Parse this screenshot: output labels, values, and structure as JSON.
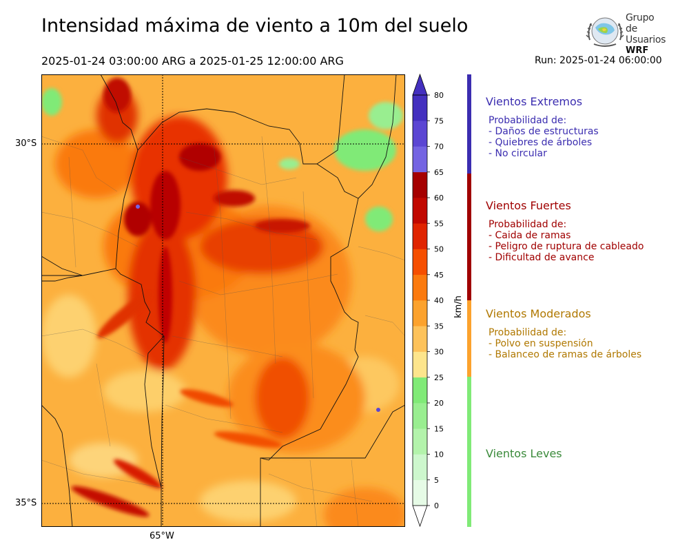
{
  "header": {
    "title": "Intensidad máxima de viento a 10m del suelo",
    "period": "2025-01-24 03:00:00 ARG  a  2025-01-25 12:00:00 ARG",
    "run": "Run: 2025-01-24 06:00:00"
  },
  "logo": {
    "line1": "Grupo de",
    "line2": "Usuarios",
    "line3": "WRF"
  },
  "map": {
    "lat_labels": [
      "30°S",
      "35°S"
    ],
    "lon_labels": [
      "65°W"
    ]
  },
  "colorbar": {
    "unit": "km/h",
    "ticks": [
      "0",
      "5",
      "10",
      "15",
      "20",
      "25",
      "30",
      "35",
      "40",
      "45",
      "50",
      "55",
      "60",
      "65",
      "70",
      "75",
      "80"
    ],
    "colors": [
      "#e6fbe6",
      "#cdf7cd",
      "#b3f3ab",
      "#99ee90",
      "#80ea77",
      "#fde58c",
      "#fdc25a",
      "#fca22d",
      "#fb7a0e",
      "#f64f00",
      "#e02400",
      "#c10800",
      "#a50000",
      "#7464e2",
      "#5b46d3",
      "#4430bf"
    ]
  },
  "categories": [
    {
      "title": "Vientos Extremos",
      "color": "#3b2db0",
      "lines": [
        "Probabilidad de:",
        "- Daños de estructuras",
        "- Quiebres de árboles",
        "- No circular"
      ]
    },
    {
      "title": "Vientos Fuertes",
      "color": "#a00000",
      "lines": [
        "Probabilidad de:",
        "- Caida de ramas",
        "- Peligro de ruptura de cableado",
        "- Dificultad de avance"
      ]
    },
    {
      "title": "Vientos Moderados",
      "color": "#b07800",
      "lines": [
        "Probabilidad de:",
        "- Polvo en suspensión",
        "- Balanceo de ramas de árboles"
      ]
    },
    {
      "title": "Vientos Leves",
      "color": "#3a8a3a",
      "lines": []
    }
  ]
}
